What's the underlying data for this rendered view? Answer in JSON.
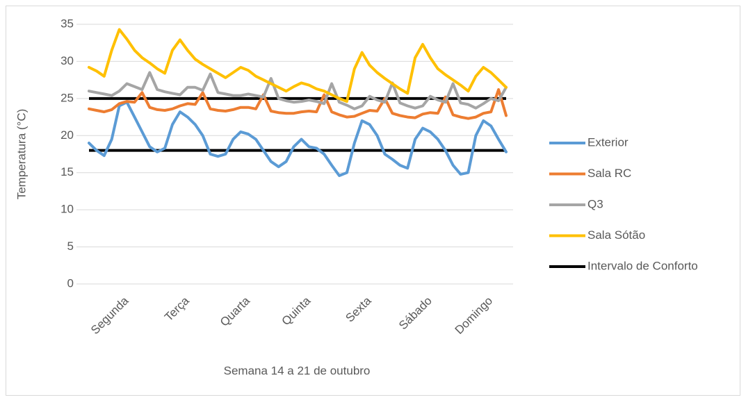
{
  "chart_data": {
    "type": "line",
    "x_label": "Semana 14 a 21 de outubro",
    "y_label": "Temperatura (°C)",
    "ylim": [
      0,
      35
    ],
    "yticks": [
      0,
      5,
      10,
      15,
      20,
      25,
      30,
      35
    ],
    "grid": true,
    "legend": "right",
    "categories": [
      null,
      null,
      null,
      null,
      null,
      "Segunda",
      null,
      null,
      null,
      null,
      null,
      null,
      null,
      "Terça",
      null,
      null,
      null,
      null,
      null,
      null,
      null,
      "Quarta",
      null,
      null,
      null,
      null,
      null,
      null,
      null,
      "Quinta",
      null,
      null,
      null,
      null,
      null,
      null,
      null,
      "Sexta",
      null,
      null,
      null,
      null,
      null,
      null,
      null,
      "Sábado",
      null,
      null,
      null,
      null,
      null,
      null,
      null,
      "Domingo",
      null,
      null
    ],
    "series": [
      {
        "name": "Exterior",
        "color": "#5b9bd5",
        "values": [
          19,
          18,
          17.3,
          19.5,
          24,
          24.5,
          22.5,
          20.5,
          18.5,
          17.8,
          18.3,
          21.5,
          23.2,
          22.5,
          21.5,
          20,
          17.5,
          17.2,
          17.5,
          19.5,
          20.5,
          20.2,
          19.5,
          18,
          16.5,
          15.8,
          16.5,
          18.5,
          19.5,
          18.5,
          18.3,
          17.5,
          16,
          14.6,
          15,
          19,
          22,
          21.5,
          20,
          17.5,
          16.8,
          16,
          15.6,
          19.5,
          21,
          20.5,
          19.5,
          18,
          16,
          14.8,
          15,
          20,
          22,
          21.3,
          19.5,
          17.8
        ]
      },
      {
        "name": "Sala RC",
        "color": "#ed7d31",
        "values": [
          23.6,
          23.4,
          23.2,
          23.5,
          24.3,
          24.6,
          24.5,
          25.8,
          23.8,
          23.5,
          23.4,
          23.6,
          24,
          24.3,
          24.2,
          25.8,
          23.6,
          23.4,
          23.3,
          23.5,
          23.8,
          23.8,
          23.6,
          25.5,
          23.3,
          23.1,
          23,
          23,
          23.2,
          23.3,
          23.2,
          25.5,
          23.2,
          22.8,
          22.5,
          22.6,
          23,
          23.4,
          23.3,
          25,
          23,
          22.7,
          22.5,
          22.4,
          22.9,
          23.1,
          23,
          25.2,
          22.8,
          22.5,
          22.3,
          22.5,
          23,
          23.2,
          26.2,
          22.7
        ]
      },
      {
        "name": "Q3",
        "color": "#a5a5a5",
        "values": [
          26,
          25.8,
          25.6,
          25.4,
          26,
          27,
          26.6,
          26.2,
          28.5,
          26.2,
          25.9,
          25.7,
          25.5,
          26.5,
          26.5,
          26.1,
          28.3,
          25.8,
          25.6,
          25.4,
          25.4,
          25.6,
          25.4,
          25.2,
          27.7,
          25,
          24.7,
          24.5,
          24.6,
          24.8,
          24.6,
          24.3,
          27,
          24.5,
          24.1,
          23.6,
          24,
          25.3,
          24.8,
          24.5,
          27.1,
          24.4,
          24,
          23.7,
          24,
          25.3,
          24.8,
          24.5,
          27,
          24.4,
          24.2,
          23.7,
          24.3,
          25,
          24.7,
          26.5
        ]
      },
      {
        "name": "Sala Sótão",
        "color": "#ffc000",
        "values": [
          29.2,
          28.7,
          28,
          31.5,
          34.3,
          33,
          31.5,
          30.5,
          29.8,
          29,
          28.4,
          31.5,
          32.9,
          31.5,
          30.3,
          29.6,
          29,
          28.4,
          27.8,
          28.5,
          29.2,
          28.8,
          28,
          27.5,
          27,
          26.5,
          26,
          26.6,
          27.1,
          26.8,
          26.3,
          26,
          25.5,
          25,
          24.6,
          29,
          31.2,
          29.5,
          28.5,
          27.7,
          27,
          26.3,
          25.7,
          30.5,
          32.3,
          30.5,
          29,
          28.2,
          27.5,
          26.8,
          26,
          28,
          29.2,
          28.5,
          27.5,
          26.5
        ]
      }
    ],
    "reference": {
      "name": "Intervalo de Conforto",
      "color": "#000000",
      "values": [
        25,
        18
      ]
    }
  }
}
